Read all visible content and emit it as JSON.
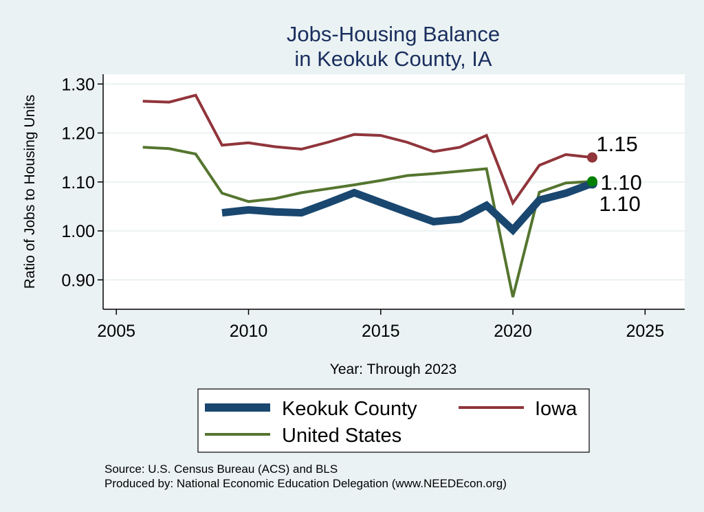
{
  "chart_data": {
    "type": "line",
    "title": [
      "Jobs-Housing Balance",
      "in Keokuk County, IA"
    ],
    "xlabel": "Year: Through 2023",
    "ylabel": "Ratio of Jobs to Housing Units",
    "xlim": [
      2004.5,
      2026.5
    ],
    "ylim": [
      0.84,
      1.32
    ],
    "xticks": [
      2005,
      2010,
      2015,
      2020,
      2025
    ],
    "yticks": [
      0.9,
      1.0,
      1.1,
      1.2,
      1.3
    ],
    "ytick_labels": [
      "0.90",
      "1.00",
      "1.10",
      "1.20",
      "1.30"
    ],
    "grid": true,
    "colors": {
      "background": "#eaf2f3",
      "plot_background": "#ffffff",
      "title": "#1a2e5e",
      "keokuk": "#1a476f",
      "iowa": "#90353b",
      "us": "#55752f",
      "us_marker": "#008000",
      "grid": "#e6eef0"
    },
    "series": [
      {
        "name": "Keokuk County",
        "key": "keokuk",
        "x": [
          2009,
          2010,
          2011,
          2012,
          2013,
          2014,
          2015,
          2016,
          2017,
          2018,
          2019,
          2020,
          2021,
          2022,
          2023
        ],
        "values": [
          1.037,
          1.043,
          1.039,
          1.037,
          1.057,
          1.078,
          1.058,
          1.038,
          1.019,
          1.024,
          1.052,
          1.002,
          1.063,
          1.077,
          1.097
        ],
        "end_label": "1.10"
      },
      {
        "name": "Iowa",
        "key": "iowa",
        "x": [
          2006,
          2007,
          2008,
          2009,
          2010,
          2011,
          2012,
          2013,
          2014,
          2015,
          2016,
          2017,
          2018,
          2019,
          2020,
          2021,
          2022,
          2023
        ],
        "values": [
          1.265,
          1.263,
          1.277,
          1.175,
          1.18,
          1.172,
          1.167,
          1.181,
          1.197,
          1.195,
          1.181,
          1.162,
          1.171,
          1.195,
          1.057,
          1.134,
          1.156,
          1.15
        ],
        "end_label": "1.15"
      },
      {
        "name": "United States",
        "key": "us",
        "x": [
          2006,
          2007,
          2008,
          2009,
          2010,
          2011,
          2012,
          2013,
          2014,
          2015,
          2016,
          2017,
          2018,
          2019,
          2020,
          2021,
          2022,
          2023
        ],
        "values": [
          1.171,
          1.168,
          1.157,
          1.077,
          1.06,
          1.066,
          1.078,
          1.086,
          1.094,
          1.103,
          1.113,
          1.117,
          1.122,
          1.127,
          0.865,
          1.079,
          1.098,
          1.101
        ],
        "end_label": "1.10"
      }
    ]
  },
  "legend": {
    "items": [
      "Keokuk County",
      "Iowa",
      "United States"
    ]
  },
  "footer": {
    "source": "Source: U.S. Census Bureau (ACS) and BLS",
    "produced": "Produced by: National Economic Education Delegation (www.NEEDEcon.org)"
  }
}
